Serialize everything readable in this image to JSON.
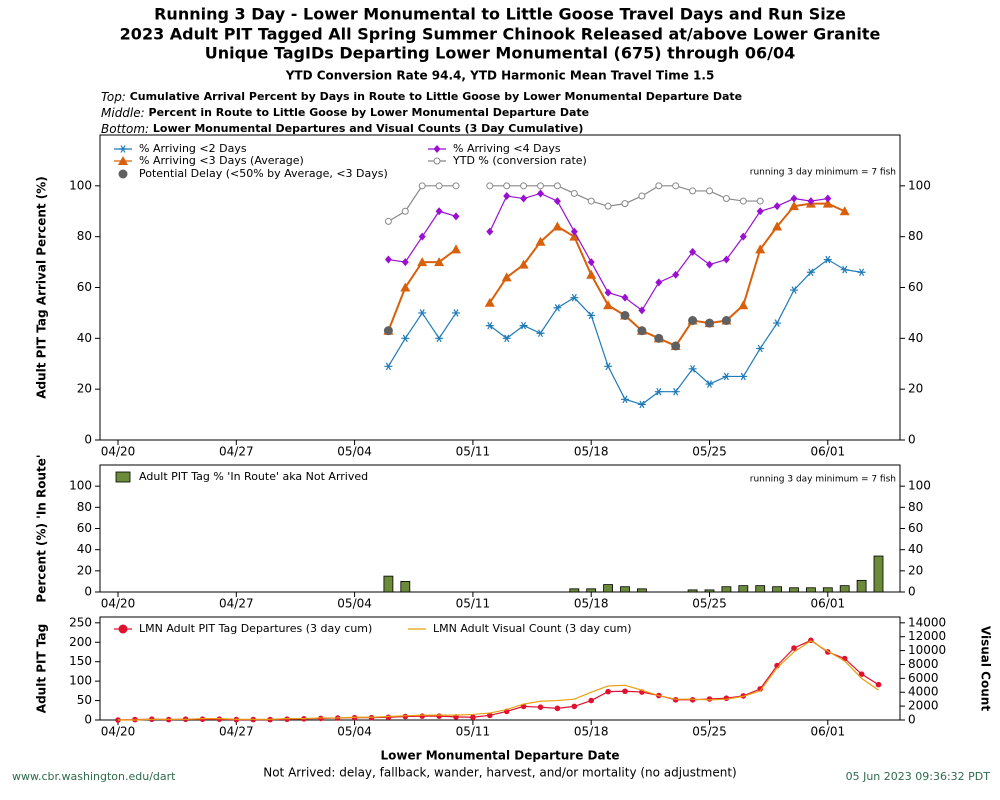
{
  "header": {
    "title": "Running 3 Day - Lower Monumental to Little Goose Travel Days and Run Size",
    "subtitle": "2023 Adult PIT Tagged All Spring Summer Chinook Released at/above Lower Granite",
    "subtitle2": "Unique TagIDs Departing Lower Monumental (675) through 06/04",
    "stats": "YTD Conversion Rate 94.4, YTD Harmonic Mean Travel Time 1.5"
  },
  "notes": [
    {
      "prefix": "Top:",
      "text": "Cumulative Arrival Percent by Days in Route to Little Goose by Lower Monumental Departure Date"
    },
    {
      "prefix": "Middle:",
      "text": "Percent in Route to Little Goose by Lower Monumental Departure Date"
    },
    {
      "prefix": "Bottom:",
      "text": "Lower Monumental Departures and Visual Counts (3 Day Cumulative)"
    }
  ],
  "chart_data": [
    {
      "type": "line",
      "ylabel": "Adult PIT Tag Arrival Percent (%)",
      "annotation": "running 3 day minimum = 7 fish",
      "categories": [
        "04/20",
        null,
        null,
        null,
        null,
        null,
        null,
        "04/27",
        null,
        null,
        null,
        null,
        null,
        null,
        "05/04",
        null,
        null,
        null,
        null,
        null,
        null,
        "05/11",
        null,
        null,
        null,
        null,
        null,
        null,
        "05/18",
        null,
        null,
        null,
        null,
        null,
        null,
        "05/25",
        null,
        null,
        null,
        null,
        null,
        null,
        "06/01",
        null,
        null,
        null
      ],
      "ylim": [
        0,
        120
      ],
      "yticks": [
        0,
        20,
        40,
        60,
        80,
        100
      ],
      "y2lim": [
        0,
        120
      ],
      "y2ticks": [
        0,
        20,
        40,
        60,
        80,
        100
      ],
      "series": [
        {
          "name": "% Arriving <2 Days",
          "color": "#1f7ab8",
          "marker": "star",
          "line": true,
          "values": [
            null,
            null,
            null,
            null,
            null,
            null,
            null,
            null,
            null,
            null,
            null,
            null,
            null,
            null,
            null,
            null,
            29,
            40,
            50,
            40,
            50,
            null,
            45,
            40,
            45,
            42,
            52,
            56,
            49,
            29,
            16,
            14,
            19,
            19,
            28,
            22,
            25,
            25,
            36,
            46,
            59,
            66,
            71,
            67,
            66,
            null
          ]
        },
        {
          "name": "% Arriving <3 Days (Average)",
          "color": "#d9600a",
          "marker": "triangle",
          "line": true,
          "values": [
            null,
            null,
            null,
            null,
            null,
            null,
            null,
            null,
            null,
            null,
            null,
            null,
            null,
            null,
            null,
            null,
            43,
            60,
            70,
            70,
            75,
            null,
            54,
            64,
            69,
            78,
            84,
            80,
            65,
            53,
            49,
            43,
            40,
            37,
            47,
            46,
            47,
            53,
            75,
            84,
            92,
            93,
            93,
            90,
            null,
            null
          ]
        },
        {
          "name": "Potential Delay (<50% by Average, <3 Days)",
          "color": "#606060",
          "marker": "circle",
          "line": false,
          "values": [
            null,
            null,
            null,
            null,
            null,
            null,
            null,
            null,
            null,
            null,
            null,
            null,
            null,
            null,
            null,
            null,
            43,
            null,
            null,
            null,
            null,
            null,
            null,
            null,
            null,
            null,
            null,
            null,
            null,
            null,
            49,
            43,
            40,
            37,
            47,
            46,
            47,
            null,
            null,
            null,
            null,
            null,
            null,
            null,
            null,
            null
          ]
        },
        {
          "name": "% Arriving <4 Days",
          "color": "#9a10d0",
          "marker": "diamond",
          "line": true,
          "values": [
            null,
            null,
            null,
            null,
            null,
            null,
            null,
            null,
            null,
            null,
            null,
            null,
            null,
            null,
            null,
            null,
            71,
            70,
            80,
            90,
            88,
            null,
            82,
            96,
            95,
            97,
            94,
            82,
            70,
            58,
            56,
            51,
            62,
            65,
            74,
            69,
            71,
            80,
            90,
            92,
            95,
            94,
            95,
            null,
            null,
            null
          ]
        },
        {
          "name": "YTD % (conversion rate)",
          "color": "#888888",
          "marker": "hollow-circle",
          "line": true,
          "values": [
            null,
            null,
            null,
            null,
            null,
            null,
            null,
            null,
            null,
            null,
            null,
            null,
            null,
            null,
            null,
            null,
            86,
            90,
            100,
            100,
            100,
            null,
            100,
            100,
            100,
            100,
            100,
            97,
            94,
            92,
            93,
            96,
            100,
            100,
            98,
            98,
            95,
            94,
            94,
            null,
            null,
            null,
            null,
            null,
            null,
            null
          ]
        }
      ]
    },
    {
      "type": "bar",
      "ylabel": "Percent (%) 'In Route'",
      "annotation": "running 3 day minimum = 7 fish",
      "categories": [
        "04/20",
        null,
        null,
        null,
        null,
        null,
        null,
        "04/27",
        null,
        null,
        null,
        null,
        null,
        null,
        "05/04",
        null,
        null,
        null,
        null,
        null,
        null,
        "05/11",
        null,
        null,
        null,
        null,
        null,
        null,
        "05/18",
        null,
        null,
        null,
        null,
        null,
        null,
        "05/25",
        null,
        null,
        null,
        null,
        null,
        null,
        "06/01",
        null,
        null,
        null
      ],
      "ylim": [
        0,
        120
      ],
      "yticks": [
        0,
        20,
        40,
        60,
        80,
        100
      ],
      "y2lim": [
        0,
        120
      ],
      "y2ticks": [
        0,
        20,
        40,
        60,
        80,
        100
      ],
      "series": [
        {
          "name": "Adult PIT Tag % 'In Route' aka Not Arrived",
          "color": "#6b8a3a",
          "values": [
            null,
            null,
            null,
            null,
            null,
            null,
            null,
            null,
            null,
            null,
            null,
            null,
            null,
            null,
            null,
            null,
            15,
            10,
            0,
            0,
            0,
            0,
            0,
            0,
            0,
            0,
            0,
            3,
            3,
            7,
            5,
            3,
            0,
            0,
            2,
            2,
            5,
            6,
            6,
            5,
            4,
            4,
            4,
            6,
            11,
            34
          ]
        }
      ]
    },
    {
      "type": "line",
      "ylabel": "Adult PIT Tag",
      "y2label": "Visual Count",
      "xlabel": "Lower Monumental Departure Date",
      "categories": [
        "04/20",
        null,
        null,
        null,
        null,
        null,
        null,
        "04/27",
        null,
        null,
        null,
        null,
        null,
        null,
        "05/04",
        null,
        null,
        null,
        null,
        null,
        null,
        "05/11",
        null,
        null,
        null,
        null,
        null,
        null,
        "05/18",
        null,
        null,
        null,
        null,
        null,
        null,
        "05/25",
        null,
        null,
        null,
        null,
        null,
        null,
        "06/01",
        null,
        null,
        null
      ],
      "ylim": [
        0,
        265
      ],
      "yticks": [
        0,
        50,
        100,
        150,
        200,
        250
      ],
      "y2lim": [
        0,
        14840
      ],
      "y2ticks": [
        0,
        2000,
        4000,
        6000,
        8000,
        10000,
        12000,
        14000
      ],
      "series": [
        {
          "name": "LMN Adult PIT Tag Departures (3 day cum)",
          "color": "#e0102f",
          "marker": "circle",
          "line": true,
          "values": [
            0,
            1,
            2,
            1,
            2,
            2,
            2,
            1,
            1,
            1,
            2,
            3,
            4,
            5,
            6,
            6,
            7,
            9,
            10,
            10,
            8,
            7,
            12,
            22,
            35,
            33,
            30,
            35,
            50,
            73,
            74,
            72,
            63,
            52,
            52,
            54,
            56,
            62,
            80,
            140,
            185,
            205,
            175,
            158,
            118,
            91
          ]
        },
        {
          "name": "LMN Adult Visual Count (3 day cum)",
          "color": "#e8a010",
          "line": true,
          "axis": "y2",
          "values": [
            0,
            0,
            100,
            100,
            100,
            200,
            200,
            100,
            100,
            100,
            200,
            200,
            300,
            300,
            400,
            400,
            500,
            600,
            700,
            700,
            700,
            800,
            1000,
            1500,
            2300,
            2700,
            2800,
            3000,
            4000,
            4900,
            5000,
            4300,
            3500,
            3000,
            3000,
            2900,
            3000,
            3400,
            4200,
            7500,
            9800,
            11400,
            9900,
            8500,
            6000,
            4300
          ]
        }
      ]
    }
  ],
  "footer": {
    "note": "Not Arrived: delay, fallback, wander, harvest, and/or mortality (no adjustment)",
    "url": "www.cbr.washington.edu/dart",
    "timestamp": "05 Jun 2023 09:36:32 PDT"
  }
}
